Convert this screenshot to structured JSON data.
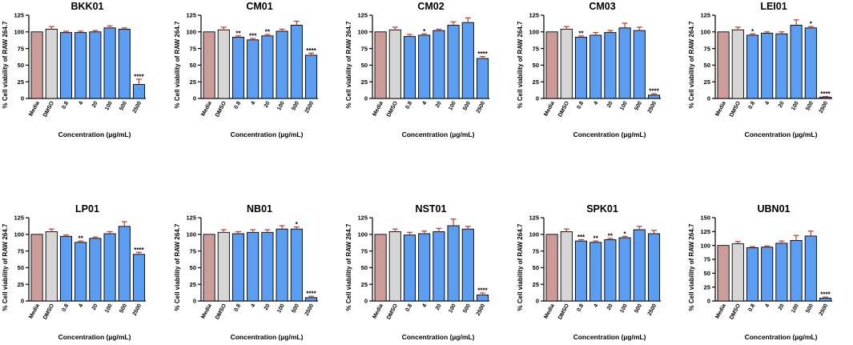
{
  "colors": {
    "media": "#cc9c9a",
    "dmso": "#d6d6d6",
    "treatment": "#5b9df0",
    "error": "#c0392b"
  },
  "chart_data": [
    {
      "type": "bar",
      "title": "BKK01",
      "ylabel": "% Cell viability of RAW 264.7",
      "xlabel": "Concentration (µg/mL)",
      "categories": [
        "Media",
        "DMSO",
        "0.8",
        "4",
        "20",
        "100",
        "500",
        "2500"
      ],
      "values": [
        100,
        104,
        99,
        99,
        100,
        106,
        104,
        21
      ],
      "errors": [
        0,
        4,
        2,
        2,
        2,
        3,
        2,
        8
      ],
      "significance": [
        "",
        "",
        "",
        "",
        "",
        "",
        "",
        "****"
      ],
      "ylim": [
        0,
        125
      ],
      "yticks": [
        "0",
        "25",
        "50",
        "75",
        "100",
        "125"
      ]
    },
    {
      "type": "bar",
      "title": "CM01",
      "ylabel": "% Cell viability of RAW 264.7",
      "xlabel": "Concentration (µg/mL)",
      "categories": [
        "Media",
        "DMSO",
        "0.8",
        "4",
        "20",
        "100",
        "500",
        "2500"
      ],
      "values": [
        100,
        103,
        92,
        88,
        94,
        101,
        110,
        65
      ],
      "errors": [
        0,
        4,
        2,
        2,
        2,
        3,
        6,
        3
      ],
      "significance": [
        "",
        "",
        "**",
        "***",
        "**",
        "",
        "",
        "****"
      ],
      "ylim": [
        0,
        125
      ],
      "yticks": [
        "0",
        "25",
        "50",
        "75",
        "100",
        "125"
      ]
    },
    {
      "type": "bar",
      "title": "CM02",
      "ylabel": "% Cell viability of RAW 264.7",
      "xlabel": "Concentration (µg/mL)",
      "categories": [
        "Media",
        "DMSO",
        "0.8",
        "4",
        "20",
        "100",
        "500",
        "2500"
      ],
      "values": [
        100,
        103,
        93,
        95,
        102,
        110,
        114,
        60
      ],
      "errors": [
        0,
        4,
        3,
        2,
        2,
        5,
        7,
        3
      ],
      "significance": [
        "",
        "",
        "",
        "*",
        "",
        "",
        "",
        "****"
      ],
      "ylim": [
        0,
        125
      ],
      "yticks": [
        "0",
        "25",
        "50",
        "75",
        "100",
        "125"
      ]
    },
    {
      "type": "bar",
      "title": "CM03",
      "ylabel": "% Cell viability of RAW 264.7",
      "xlabel": "Concentration (µg/mL)",
      "categories": [
        "Media",
        "DMSO",
        "0.8",
        "4",
        "20",
        "100",
        "500",
        "2500"
      ],
      "values": [
        100,
        104,
        92,
        95,
        99,
        106,
        102,
        5
      ],
      "errors": [
        0,
        4,
        2,
        4,
        3,
        7,
        5,
        2
      ],
      "significance": [
        "",
        "",
        "**",
        "",
        "",
        "",
        "",
        "****"
      ],
      "ylim": [
        0,
        125
      ],
      "yticks": [
        "0",
        "25",
        "50",
        "75",
        "100",
        "125"
      ]
    },
    {
      "type": "bar",
      "title": "LEI01",
      "ylabel": "% Cell viability of RAW 264.7",
      "xlabel": "Concentration (µg/mL)",
      "categories": [
        "Media",
        "DMSO",
        "0.8",
        "4",
        "20",
        "100",
        "500",
        "2500"
      ],
      "values": [
        100,
        103,
        95,
        98,
        97,
        110,
        106,
        2
      ],
      "errors": [
        0,
        4,
        2,
        2,
        3,
        8,
        2,
        1
      ],
      "significance": [
        "",
        "",
        "*",
        "",
        "",
        "",
        "*",
        "****"
      ],
      "ylim": [
        0,
        125
      ],
      "yticks": [
        "0",
        "25",
        "50",
        "75",
        "100",
        "125"
      ]
    },
    {
      "type": "bar",
      "title": "LP01",
      "ylabel": "% Cell viability of RAW 264.7",
      "xlabel": "Concentration (µg/mL)",
      "categories": [
        "Media",
        "DMSO",
        "0.8",
        "4",
        "20",
        "100",
        "500",
        "2500"
      ],
      "values": [
        100,
        104,
        97,
        88,
        94,
        101,
        112,
        70
      ],
      "errors": [
        0,
        4,
        2,
        2,
        2,
        3,
        7,
        3
      ],
      "significance": [
        "",
        "",
        "",
        "**",
        "",
        "",
        "",
        "****"
      ],
      "ylim": [
        0,
        125
      ],
      "yticks": [
        "0",
        "25",
        "50",
        "75",
        "100",
        "125"
      ]
    },
    {
      "type": "bar",
      "title": "NB01",
      "ylabel": "% Cell viability of RAW 264.7",
      "xlabel": "Concentration (µg/mL)",
      "categories": [
        "Media",
        "DMSO",
        "0.8",
        "4",
        "20",
        "100",
        "500",
        "2500"
      ],
      "values": [
        100,
        103,
        101,
        103,
        103,
        108,
        108,
        5
      ],
      "errors": [
        0,
        4,
        3,
        4,
        4,
        5,
        3,
        2
      ],
      "significance": [
        "",
        "",
        "",
        "",
        "",
        "",
        "*",
        "****"
      ],
      "ylim": [
        0,
        125
      ],
      "yticks": [
        "0",
        "25",
        "50",
        "75",
        "100",
        "125"
      ]
    },
    {
      "type": "bar",
      "title": "NST01",
      "ylabel": "% Cell viability of RAW 264.7",
      "xlabel": "Concentration (µg/mL)",
      "categories": [
        "Media",
        "DMSO",
        "0.8",
        "4",
        "20",
        "100",
        "500",
        "2500"
      ],
      "values": [
        100,
        104,
        99,
        101,
        104,
        113,
        108,
        9
      ],
      "errors": [
        0,
        4,
        4,
        4,
        5,
        10,
        4,
        3
      ],
      "significance": [
        "",
        "",
        "",
        "",
        "",
        "",
        "",
        "****"
      ],
      "ylim": [
        0,
        125
      ],
      "yticks": [
        "0",
        "25",
        "50",
        "75",
        "100",
        "125"
      ]
    },
    {
      "type": "bar",
      "title": "SPK01",
      "ylabel": "% Cell viability of RAW 264.7",
      "xlabel": "Concentration (µg/mL)",
      "categories": [
        "Media",
        "DMSO",
        "0.8",
        "4",
        "20",
        "100",
        "500",
        "2500"
      ],
      "values": [
        100,
        104,
        90,
        88,
        92,
        95,
        107,
        101
      ],
      "errors": [
        0,
        4,
        2,
        2,
        2,
        2,
        5,
        5
      ],
      "significance": [
        "",
        "",
        "***",
        "**",
        "**",
        "*",
        "",
        ""
      ],
      "ylim": [
        0,
        125
      ],
      "yticks": [
        "0",
        "25",
        "50",
        "75",
        "100",
        "125"
      ]
    },
    {
      "type": "bar",
      "title": "UBN01",
      "ylabel": "% Cell viability of RAW 264.7",
      "xlabel": "Concentration (µg/mL)",
      "categories": [
        "Media",
        "DMSO",
        "0.8",
        "4",
        "20",
        "100",
        "500",
        "2500"
      ],
      "values": [
        100,
        103,
        96,
        97,
        104,
        109,
        117,
        5
      ],
      "errors": [
        0,
        4,
        2,
        2,
        4,
        9,
        9,
        2
      ],
      "significance": [
        "",
        "",
        "",
        "",
        "",
        "",
        "",
        "****"
      ],
      "ylim": [
        0,
        150
      ],
      "yticks": [
        "0",
        "25",
        "50",
        "75",
        "100",
        "125",
        "150"
      ]
    }
  ]
}
